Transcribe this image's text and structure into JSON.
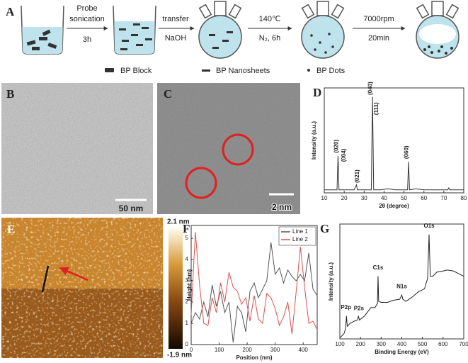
{
  "panel_labels": [
    "A",
    "B",
    "C",
    "D",
    "E",
    "F",
    "G"
  ],
  "schematic": {
    "steps": [
      {
        "top": "Probe",
        "middle": "sonication",
        "bottom": "3h"
      },
      {
        "top": "transfer",
        "bottom": "NaOH"
      },
      {
        "top": "140℃",
        "bottom": "N₂, 6h"
      },
      {
        "top": "7000rpm",
        "bottom": "20min"
      }
    ],
    "legend": [
      "BP Block",
      "BP Nanosheets",
      "BP Dots"
    ]
  },
  "images": {
    "b_scale": "50 nm",
    "c_scale": "2 nm",
    "e_colorbar_max": "2.1 nm",
    "e_colorbar_min": "-1.9 nm"
  },
  "chart_data": [
    {
      "type": "line",
      "xlabel": "2θ (degree)",
      "ylabel": "Intensity (a.u.)",
      "color": "#333333",
      "x": [
        10,
        14,
        16.4,
        16.9,
        17.4,
        20,
        22,
        25,
        26.2,
        26.6,
        27,
        30,
        33.6,
        34.2,
        34.8,
        38,
        42,
        46,
        51.8,
        52.3,
        52.8,
        56,
        60,
        66,
        72,
        72.5,
        73,
        78,
        80
      ],
      "values": [
        3,
        3,
        3,
        37,
        3,
        3,
        3,
        3,
        8,
        3,
        3,
        3,
        3,
        96,
        3,
        3,
        4,
        3,
        3,
        31,
        3,
        4,
        3,
        3,
        3,
        5,
        3,
        3,
        3
      ],
      "xlim": [
        10,
        80
      ],
      "xticks": [
        10,
        20,
        30,
        40,
        50,
        60,
        70,
        80
      ],
      "ylim": [
        0,
        105
      ],
      "annotations": [
        {
          "text": "(020)",
          "x": 16.2,
          "y": 40
        },
        {
          "text": "(004)",
          "x": 20,
          "y": 31
        },
        {
          "text": "(021)",
          "x": 26.6,
          "y": 10
        },
        {
          "text": "(040)",
          "x": 33.2,
          "y": 98
        },
        {
          "text": "(111)",
          "x": 36.2,
          "y": 78
        },
        {
          "text": "(060)",
          "x": 51.3,
          "y": 34
        }
      ]
    },
    {
      "type": "line",
      "xlabel": "Position (nm)",
      "ylabel": "Height (nm)",
      "legend": "upper right",
      "x": [
        0,
        15,
        30,
        45,
        60,
        75,
        90,
        105,
        120,
        135,
        150,
        165,
        180,
        195,
        210,
        225,
        240,
        255,
        270,
        285,
        300,
        315,
        330,
        345,
        360,
        375,
        390,
        405,
        420,
        435,
        450
      ],
      "series": [
        {
          "name": "Line 1",
          "color": "#555555",
          "values": [
            1.0,
            1.5,
            1.2,
            2.0,
            1.3,
            2.8,
            1.8,
            2.5,
            1.5,
            2.0,
            0.1,
            1.8,
            1.5,
            0.6,
            2.5,
            2.9,
            2.2,
            2.6,
            3.0,
            4.8,
            3.3,
            3.6,
            2.9,
            3.5,
            3.2,
            3.0,
            3.3,
            3.0,
            4.3,
            2.6,
            2.3
          ]
        },
        {
          "name": "Line 2",
          "color": "#d9534f",
          "values": [
            1.4,
            5.3,
            2.8,
            1.0,
            0.9,
            2.2,
            1.5,
            2.9,
            2.0,
            3.4,
            2.7,
            2.5,
            1.9,
            2.2,
            1.1,
            2.3,
            1.2,
            1.0,
            2.4,
            2.2,
            1.7,
            0.9,
            1.3,
            2.0,
            0.5,
            2.5,
            4.6,
            2.7,
            1.0,
            1.1,
            0.7
          ]
        }
      ],
      "xlim": [
        0,
        450
      ],
      "xticks": [
        0,
        100,
        200,
        300,
        400
      ],
      "ylim": [
        0,
        5.6
      ],
      "yticks": [
        0,
        1,
        2,
        3,
        4,
        5
      ]
    },
    {
      "type": "line",
      "xlabel": "Binding Energy (eV)",
      "ylabel": "Intensity (a.u.)",
      "color": "#222222",
      "x": [
        100,
        120,
        128,
        132,
        136,
        150,
        170,
        185,
        190,
        195,
        220,
        250,
        270,
        282,
        285,
        288,
        300,
        330,
        360,
        390,
        400,
        405,
        420,
        450,
        480,
        510,
        525,
        532,
        538,
        550,
        570,
        600,
        620,
        650,
        680,
        700
      ],
      "values": [
        1,
        5,
        10,
        22,
        12,
        15,
        17,
        18,
        22,
        18,
        22,
        30,
        30,
        34,
        60,
        36,
        35,
        35,
        37,
        38,
        42,
        38,
        36,
        40,
        45,
        48,
        58,
        100,
        60,
        60,
        64,
        65,
        66,
        65,
        62,
        60
      ],
      "xlim": [
        100,
        700
      ],
      "xticks": [
        100,
        200,
        300,
        400,
        500,
        600,
        700
      ],
      "ylim": [
        0,
        110
      ],
      "annotations": [
        {
          "text": "P2p",
          "x": 130,
          "y": 26
        },
        {
          "text": "P2s",
          "x": 192,
          "y": 25
        },
        {
          "text": "C1s",
          "x": 285,
          "y": 64
        },
        {
          "text": "N1s",
          "x": 400,
          "y": 46
        },
        {
          "text": "O1s",
          "x": 532,
          "y": 104
        }
      ]
    }
  ]
}
